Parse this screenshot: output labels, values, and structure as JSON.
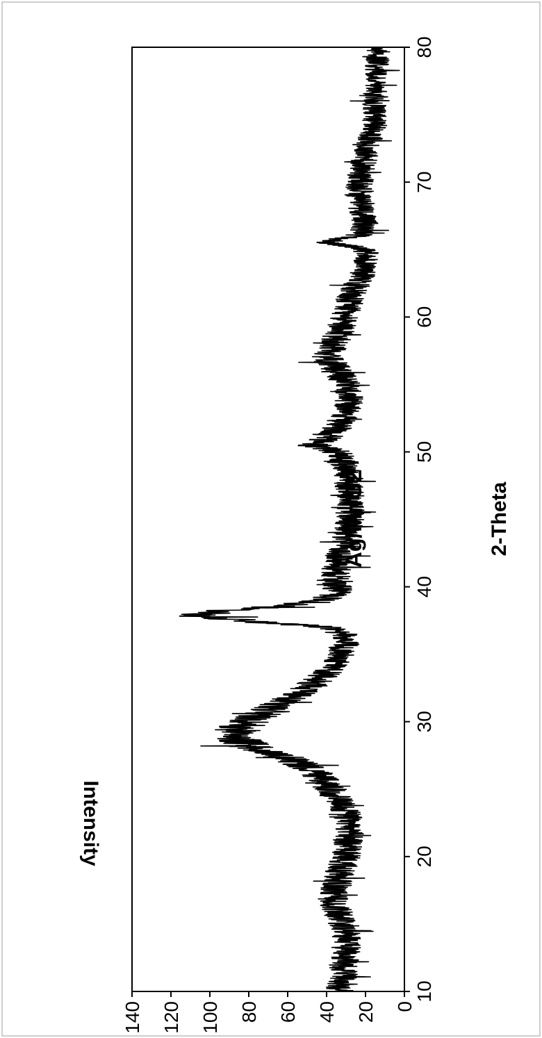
{
  "chart_data": {
    "type": "line",
    "title": "Ag/MnO2",
    "xlabel": "2-Theta",
    "ylabel": "Intensity",
    "xlim": [
      10,
      80
    ],
    "ylim": [
      0,
      140
    ],
    "xticks": [
      10,
      20,
      30,
      40,
      50,
      60,
      70,
      80
    ],
    "yticks": [
      0,
      20,
      40,
      60,
      80,
      100,
      120,
      140
    ],
    "grid": false,
    "orientation": "rotated-90-clockwise",
    "line_color": "#000000",
    "series": [
      {
        "x": [
          10,
          11,
          12,
          13,
          14,
          15,
          16,
          17,
          18,
          19,
          20,
          21,
          22,
          23,
          24,
          25,
          26,
          27,
          28,
          28.8,
          29.5,
          30,
          31,
          32,
          33,
          34,
          35,
          36,
          36.5,
          37,
          37.4,
          37.8,
          38.2,
          38.6,
          39,
          39.5,
          40,
          41,
          42,
          43,
          44,
          45,
          46,
          47,
          48,
          49,
          50,
          50.5,
          51,
          52,
          53,
          54,
          55,
          56,
          57,
          58,
          59,
          60,
          61,
          62,
          63,
          64,
          65,
          65.6,
          66,
          67,
          68,
          69,
          70,
          71,
          72,
          73,
          74,
          75,
          76,
          77,
          78,
          79,
          80
        ],
        "y": [
          33,
          32,
          31,
          30,
          30,
          31,
          35,
          37,
          35,
          33,
          30,
          29,
          28,
          29,
          33,
          38,
          44,
          55,
          75,
          88,
          85,
          80,
          68,
          55,
          45,
          38,
          33,
          30,
          31,
          40,
          75,
          108,
          95,
          62,
          42,
          35,
          34,
          35,
          34,
          31,
          29,
          28,
          28,
          28,
          29,
          30,
          35,
          46,
          40,
          33,
          30,
          28,
          30,
          34,
          40,
          36,
          33,
          30,
          29,
          26,
          22,
          20,
          20,
          40,
          24,
          20,
          22,
          24,
          23,
          22,
          20,
          18,
          16,
          15,
          15,
          14,
          14,
          14,
          13
        ]
      }
    ]
  }
}
